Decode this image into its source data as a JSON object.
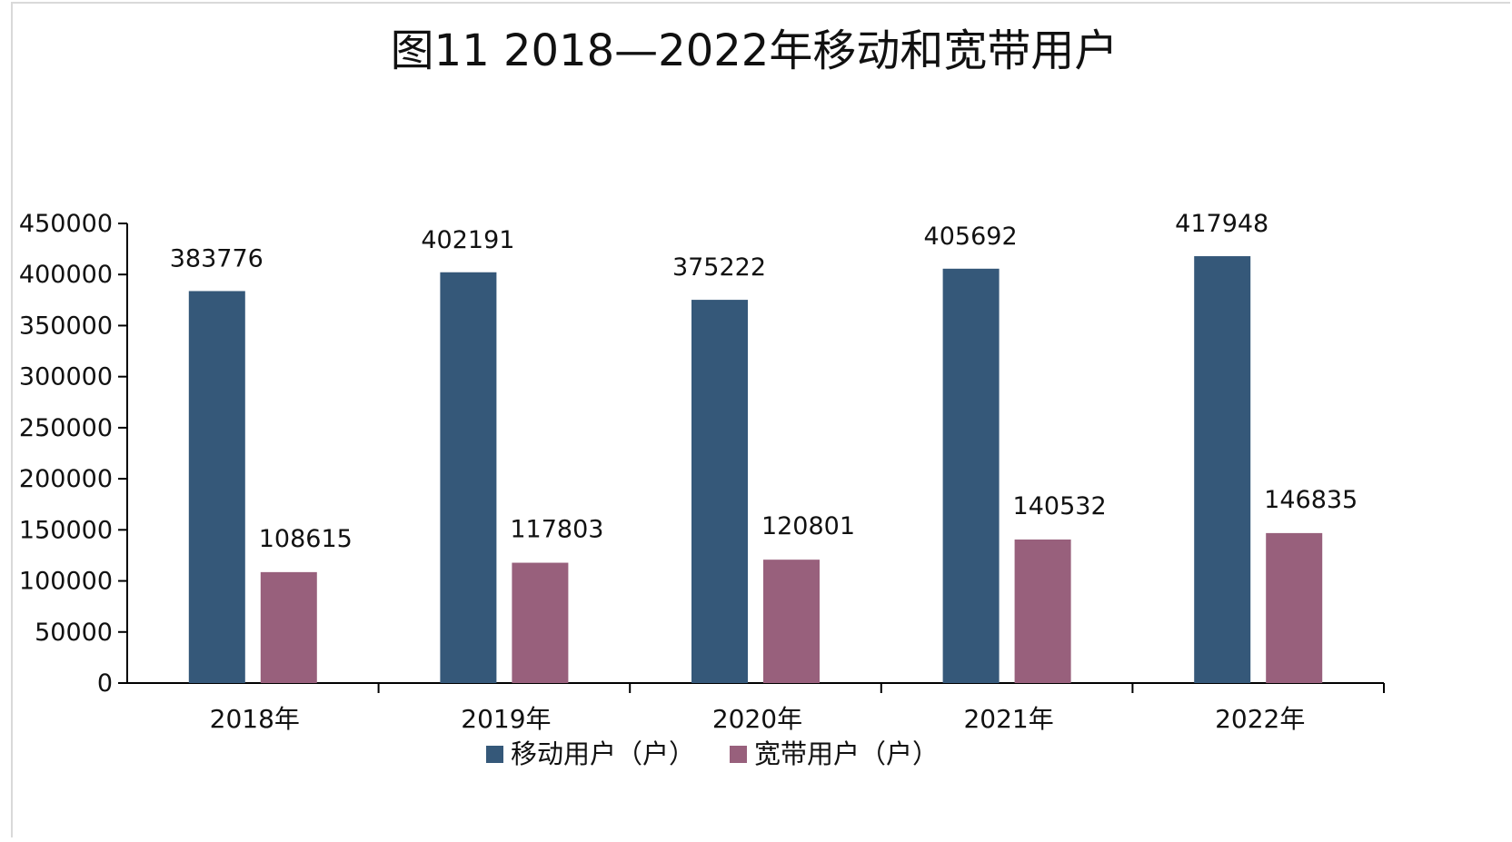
{
  "chart_data": {
    "type": "bar",
    "title": "图11  2018—2022年移动和宽带用户",
    "categories": [
      "2018年",
      "2019年",
      "2020年",
      "2021年",
      "2022年"
    ],
    "series": [
      {
        "name": "移动用户（户）",
        "color": "#355879",
        "values": [
          383776,
          402191,
          375222,
          405692,
          417948
        ]
      },
      {
        "name": "宽带用户（户）",
        "color": "#98607c",
        "values": [
          108615,
          117803,
          120801,
          140532,
          146835
        ]
      }
    ],
    "ylim": [
      0,
      450000
    ],
    "yticks": [
      0,
      50000,
      100000,
      150000,
      200000,
      250000,
      300000,
      350000,
      400000,
      450000
    ],
    "data_labels": true,
    "legend_position": "bottom",
    "grid": false
  }
}
